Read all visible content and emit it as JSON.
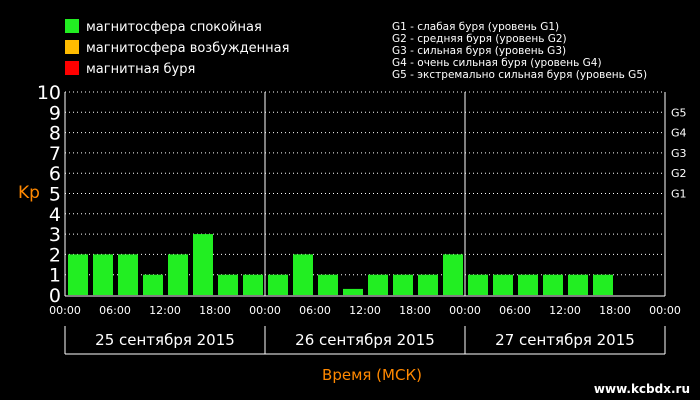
{
  "legend": [
    {
      "label": "магнитосфера спокойная",
      "color": "#22ee22"
    },
    {
      "label": "магнитосфера возбужденная",
      "color": "#ffbb00"
    },
    {
      "label": "магнитная буря",
      "color": "#ff0000"
    }
  ],
  "g_scale": [
    "G1 - слабая буря (уровень G1)",
    "G2 - средняя буря (уровень G2)",
    "G3 - сильная буря (уровень G3)",
    "G4 - очень сильная буря (уровень G4)",
    "G5 - экстремально сильная буря (уровень G5)"
  ],
  "watermark": "www.kcbdx.ru",
  "chart_data": {
    "type": "bar",
    "ylabel": "Kp",
    "xlabel": "Время (МСК)",
    "ylim": [
      0,
      10
    ],
    "y_ticks": [
      "0",
      "1",
      "2",
      "3",
      "4",
      "5",
      "6",
      "7",
      "8",
      "9",
      "10"
    ],
    "right_ticks": [
      {
        "label": "G1",
        "kp": 5
      },
      {
        "label": "G2",
        "kp": 6
      },
      {
        "label": "G3",
        "kp": 7
      },
      {
        "label": "G4",
        "kp": 8
      },
      {
        "label": "G5",
        "kp": 9
      }
    ],
    "x_tick_labels": [
      "00:00",
      "06:00",
      "12:00",
      "18:00",
      "00:00",
      "06:00",
      "12:00",
      "18:00",
      "00:00",
      "06:00",
      "12:00",
      "18:00",
      "00:00"
    ],
    "days": [
      "25 сентября 2015",
      "26 сентября 2015",
      "27 сентября 2015"
    ],
    "grid": true,
    "series": [
      {
        "values": [
          2,
          2,
          2,
          1,
          2,
          3,
          1,
          1,
          1,
          2,
          1,
          0.3,
          1,
          1,
          1,
          2,
          1,
          1,
          1,
          1,
          1,
          1
        ]
      }
    ]
  }
}
